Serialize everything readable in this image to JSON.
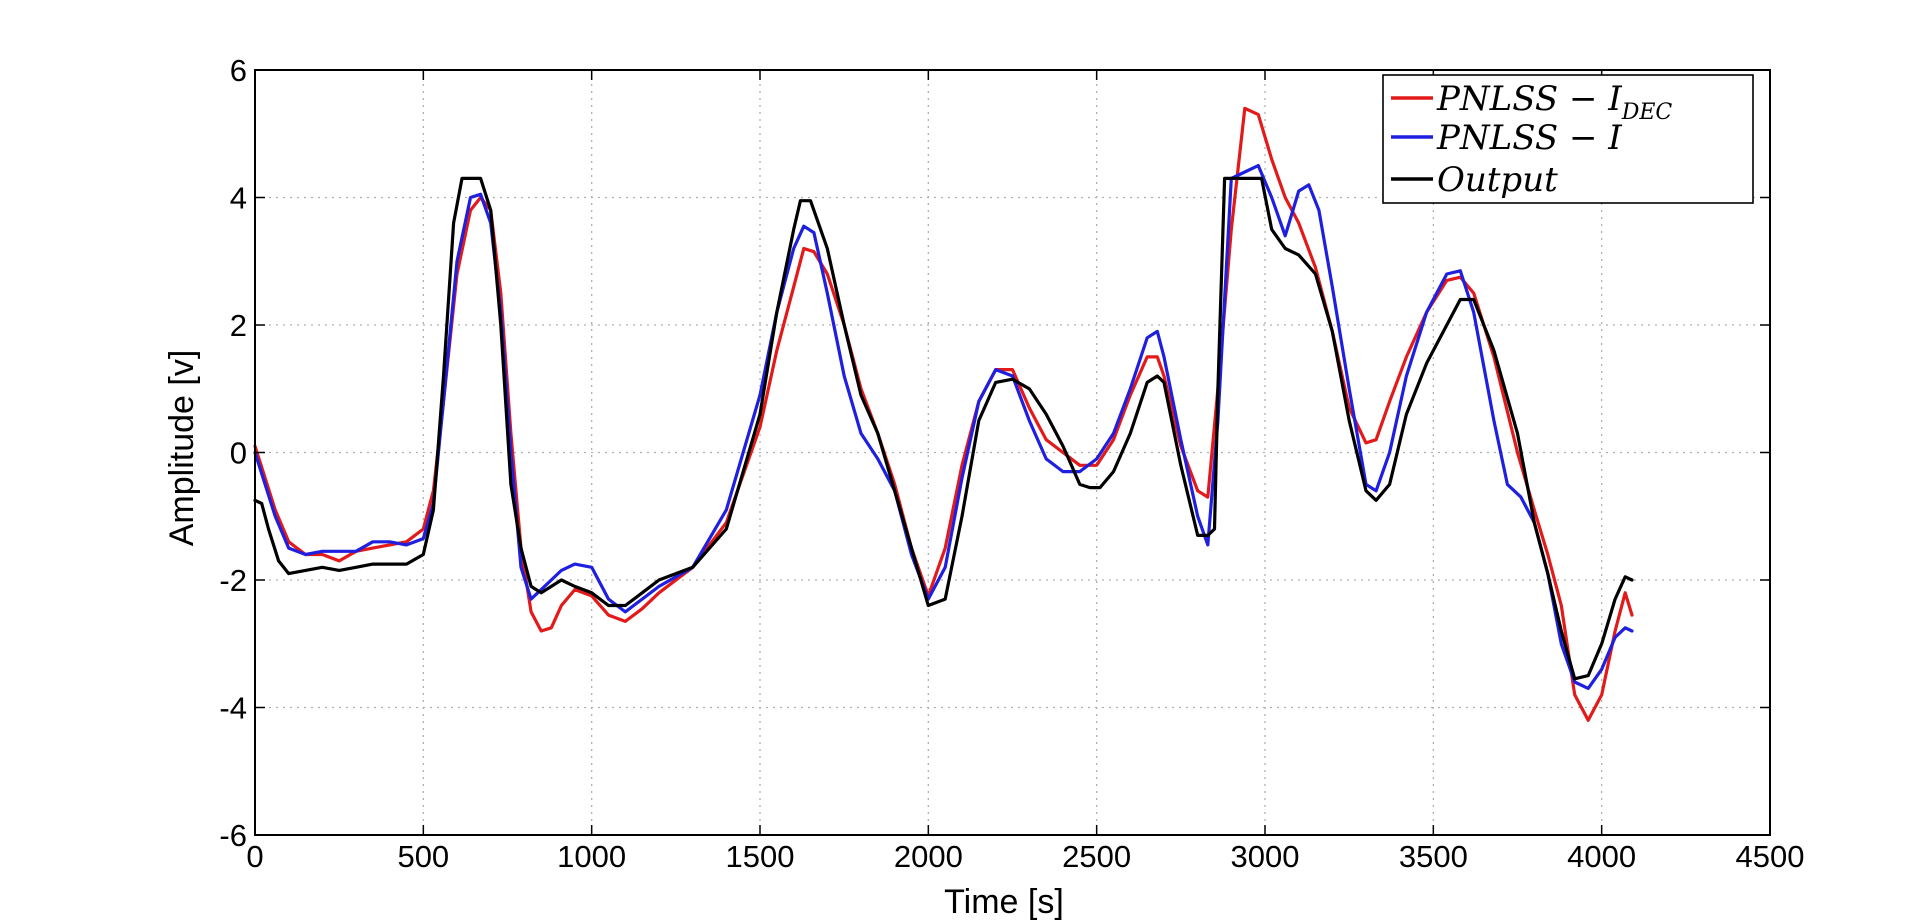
{
  "chart_data": {
    "type": "line",
    "xlabel": "Time [s]",
    "ylabel": "Amplitude [v]",
    "xlim": [
      0,
      4500
    ],
    "ylim": [
      -6,
      6
    ],
    "xticks": [
      "0",
      "500",
      "1000",
      "1500",
      "2000",
      "2500",
      "3000",
      "3500",
      "4000",
      "4500"
    ],
    "yticks": [
      "6",
      "4",
      "2",
      "0",
      "-2",
      "-4",
      "-6"
    ],
    "grid": true,
    "legend_position": "top-right",
    "series": [
      {
        "name": "PNLSS − I",
        "name_subscript": "DEC",
        "color": "#e21a1a",
        "x": [
          0,
          30,
          60,
          100,
          150,
          200,
          250,
          300,
          350,
          400,
          450,
          500,
          530,
          560,
          600,
          640,
          670,
          700,
          730,
          760,
          790,
          820,
          850,
          880,
          910,
          950,
          1000,
          1050,
          1100,
          1150,
          1200,
          1300,
          1400,
          1500,
          1550,
          1600,
          1630,
          1660,
          1700,
          1750,
          1800,
          1850,
          1900,
          1950,
          2000,
          2050,
          2100,
          2150,
          2200,
          2250,
          2300,
          2350,
          2400,
          2450,
          2500,
          2550,
          2600,
          2650,
          2680,
          2700,
          2750,
          2800,
          2830,
          2860,
          2900,
          2940,
          2980,
          3020,
          3060,
          3100,
          3150,
          3200,
          3250,
          3300,
          3330,
          3370,
          3420,
          3480,
          3540,
          3580,
          3620,
          3680,
          3750,
          3800,
          3840,
          3880,
          3920,
          3960,
          4000,
          4040,
          4070,
          4090
        ],
        "values": [
          0.1,
          -0.4,
          -0.9,
          -1.4,
          -1.6,
          -1.6,
          -1.7,
          -1.55,
          -1.5,
          -1.45,
          -1.4,
          -1.2,
          -0.6,
          0.8,
          2.8,
          3.8,
          4.0,
          3.8,
          2.5,
          0.3,
          -1.5,
          -2.5,
          -2.8,
          -2.75,
          -2.4,
          -2.15,
          -2.25,
          -2.55,
          -2.65,
          -2.45,
          -2.2,
          -1.8,
          -1.1,
          0.4,
          1.6,
          2.6,
          3.2,
          3.15,
          2.8,
          2.0,
          1.0,
          0.3,
          -0.5,
          -1.5,
          -2.25,
          -1.5,
          -0.2,
          0.8,
          1.3,
          1.3,
          0.7,
          0.2,
          0.0,
          -0.2,
          -0.2,
          0.2,
          0.9,
          1.5,
          1.5,
          1.2,
          0.1,
          -0.6,
          -0.7,
          1.0,
          3.5,
          5.4,
          5.3,
          4.6,
          4.0,
          3.6,
          2.9,
          1.9,
          0.7,
          0.15,
          0.2,
          0.8,
          1.5,
          2.2,
          2.7,
          2.75,
          2.5,
          1.5,
          0.0,
          -0.9,
          -1.6,
          -2.4,
          -3.8,
          -4.2,
          -3.8,
          -2.8,
          -2.2,
          -2.55
        ]
      },
      {
        "name": "PNLSS − I",
        "color": "#1f1fe0",
        "x": [
          0,
          30,
          60,
          100,
          150,
          200,
          250,
          300,
          350,
          400,
          450,
          500,
          530,
          560,
          600,
          640,
          670,
          700,
          730,
          760,
          790,
          820,
          850,
          880,
          910,
          950,
          1000,
          1050,
          1100,
          1150,
          1200,
          1300,
          1400,
          1500,
          1550,
          1600,
          1630,
          1660,
          1700,
          1750,
          1800,
          1850,
          1900,
          1950,
          2000,
          2050,
          2100,
          2150,
          2200,
          2250,
          2300,
          2350,
          2400,
          2450,
          2500,
          2550,
          2600,
          2650,
          2680,
          2700,
          2750,
          2800,
          2830,
          2860,
          2900,
          2940,
          2980,
          3020,
          3060,
          3100,
          3130,
          3160,
          3200,
          3250,
          3300,
          3330,
          3370,
          3420,
          3480,
          3540,
          3580,
          3620,
          3680,
          3720,
          3760,
          3800,
          3840,
          3880,
          3920,
          3960,
          4000,
          4040,
          4070,
          4090
        ],
        "values": [
          0.0,
          -0.5,
          -1.0,
          -1.5,
          -1.6,
          -1.55,
          -1.55,
          -1.55,
          -1.4,
          -1.4,
          -1.45,
          -1.35,
          -0.8,
          0.8,
          3.0,
          4.0,
          4.05,
          3.6,
          2.2,
          0.0,
          -1.8,
          -2.3,
          -2.15,
          -2.0,
          -1.85,
          -1.75,
          -1.8,
          -2.3,
          -2.5,
          -2.3,
          -2.1,
          -1.8,
          -0.9,
          0.9,
          2.2,
          3.2,
          3.55,
          3.45,
          2.5,
          1.2,
          0.3,
          -0.1,
          -0.6,
          -1.6,
          -2.3,
          -1.8,
          -0.4,
          0.8,
          1.3,
          1.2,
          0.5,
          -0.1,
          -0.3,
          -0.3,
          -0.1,
          0.3,
          1.0,
          1.8,
          1.9,
          1.5,
          0.2,
          -1.0,
          -1.45,
          0.5,
          4.3,
          4.4,
          4.5,
          4.0,
          3.4,
          4.1,
          4.2,
          3.8,
          2.6,
          1.0,
          -0.5,
          -0.6,
          0.0,
          1.2,
          2.2,
          2.8,
          2.85,
          2.2,
          0.5,
          -0.5,
          -0.7,
          -1.1,
          -1.9,
          -3.0,
          -3.6,
          -3.7,
          -3.4,
          -2.9,
          -2.75,
          -2.8
        ]
      },
      {
        "name": "Output",
        "color": "#000000",
        "x": [
          0,
          20,
          40,
          70,
          100,
          150,
          200,
          250,
          300,
          350,
          400,
          450,
          500,
          530,
          560,
          590,
          615,
          640,
          670,
          700,
          730,
          760,
          790,
          820,
          850,
          880,
          910,
          950,
          1000,
          1050,
          1100,
          1150,
          1200,
          1300,
          1400,
          1500,
          1550,
          1600,
          1620,
          1650,
          1700,
          1750,
          1800,
          1850,
          1900,
          1950,
          2000,
          2050,
          2100,
          2150,
          2200,
          2250,
          2300,
          2350,
          2400,
          2450,
          2480,
          2510,
          2550,
          2600,
          2650,
          2680,
          2700,
          2750,
          2800,
          2830,
          2850,
          2860,
          2880,
          2920,
          2960,
          2990,
          3020,
          3060,
          3100,
          3150,
          3200,
          3250,
          3300,
          3330,
          3370,
          3420,
          3480,
          3540,
          3580,
          3620,
          3680,
          3750,
          3800,
          3840,
          3880,
          3920,
          3960,
          4000,
          4040,
          4070,
          4090
        ],
        "values": [
          -0.75,
          -0.8,
          -1.2,
          -1.7,
          -1.9,
          -1.85,
          -1.8,
          -1.85,
          -1.8,
          -1.75,
          -1.75,
          -1.75,
          -1.6,
          -0.9,
          1.2,
          3.6,
          4.3,
          4.3,
          4.3,
          3.8,
          2.0,
          -0.5,
          -1.5,
          -2.1,
          -2.2,
          -2.1,
          -2.0,
          -2.1,
          -2.2,
          -2.4,
          -2.4,
          -2.2,
          -2.0,
          -1.8,
          -1.2,
          0.6,
          2.2,
          3.5,
          3.95,
          3.95,
          3.2,
          2.0,
          0.9,
          0.3,
          -0.6,
          -1.5,
          -2.4,
          -2.3,
          -1.0,
          0.5,
          1.1,
          1.15,
          1.0,
          0.6,
          0.1,
          -0.5,
          -0.55,
          -0.55,
          -0.3,
          0.3,
          1.1,
          1.2,
          1.1,
          -0.2,
          -1.3,
          -1.3,
          -1.2,
          1.0,
          4.3,
          4.3,
          4.3,
          4.3,
          3.5,
          3.2,
          3.1,
          2.8,
          1.9,
          0.5,
          -0.6,
          -0.75,
          -0.5,
          0.6,
          1.4,
          2.0,
          2.4,
          2.4,
          1.6,
          0.3,
          -1.1,
          -1.9,
          -2.8,
          -3.55,
          -3.5,
          -3.0,
          -2.3,
          -1.95,
          -2.0
        ]
      }
    ]
  }
}
